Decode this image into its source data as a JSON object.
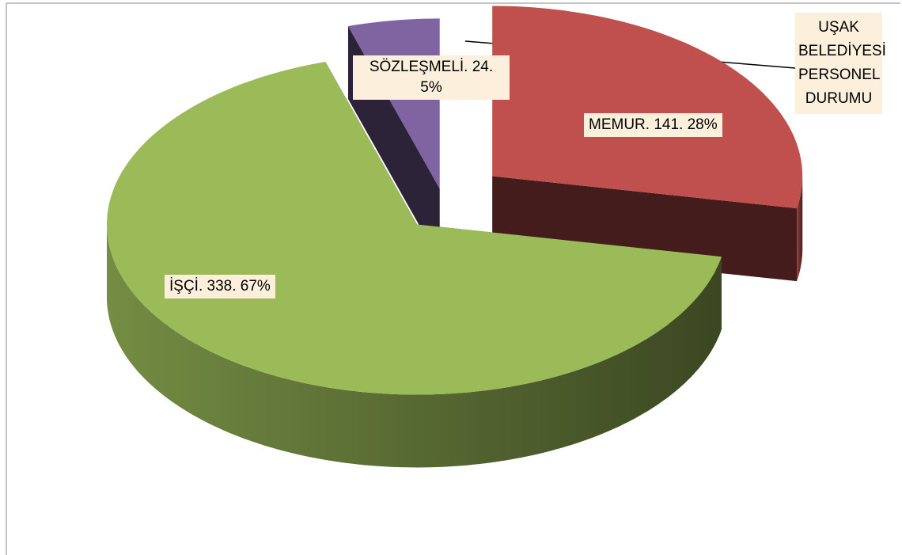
{
  "chart_data": {
    "type": "pie3d",
    "title": "UŞAK BELEDİYESİ PERSONEL DURUMU",
    "values": [
      141,
      338,
      24
    ],
    "value_labels": [
      "MEMUR. 141. 28%",
      "İŞÇİ. 338. 67%",
      "SÖZLEŞMELİ. 24. 5%"
    ],
    "colors": [
      "#c0504d",
      "#9bbb59",
      "#8064a2"
    ]
  }
}
